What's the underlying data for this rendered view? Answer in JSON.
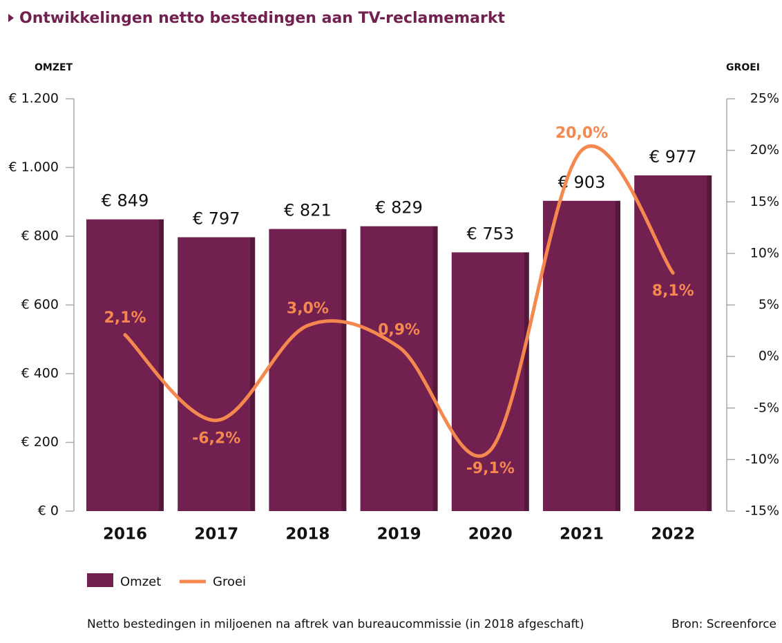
{
  "chart_data": {
    "type": "bar",
    "title": "Ontwikkelingen netto bestedingen aan TV-reclamemarkt",
    "y_label": "OMZET",
    "y2_label": "GROEI",
    "categories": [
      "2016",
      "2017",
      "2018",
      "2019",
      "2020",
      "2021",
      "2022"
    ],
    "series": [
      {
        "name": "Omzet",
        "type": "bar",
        "color": "#722050",
        "values": [
          849,
          797,
          821,
          829,
          753,
          903,
          977
        ],
        "value_labels": [
          "€ 849",
          "€ 797",
          "€ 821",
          "€ 829",
          "€ 753",
          "€ 903",
          "€ 977"
        ]
      },
      {
        "name": "Groei",
        "type": "line",
        "axis": "y2",
        "color": "#f5884f",
        "values": [
          2.1,
          -6.2,
          3.0,
          0.9,
          -9.1,
          20.0,
          8.1
        ],
        "value_labels": [
          "2,1%",
          "-6,2%",
          "3,0%",
          "0,9%",
          "-9,1%",
          "20,0%",
          "8,1%"
        ]
      }
    ],
    "ylim": [
      0,
      1200
    ],
    "yticks": [
      {
        "value": 0,
        "label": "€ 0"
      },
      {
        "value": 200,
        "label": "€ 200"
      },
      {
        "value": 400,
        "label": "€ 400"
      },
      {
        "value": 600,
        "label": "€ 600"
      },
      {
        "value": 800,
        "label": "€ 800"
      },
      {
        "value": 1000,
        "label": "€ 1.000"
      },
      {
        "value": 1200,
        "label": "€ 1.200"
      }
    ],
    "y2lim": [
      -15,
      25
    ],
    "y2ticks": [
      {
        "value": -15,
        "label": "-15%"
      },
      {
        "value": -10,
        "label": "-10%"
      },
      {
        "value": -5,
        "label": "-5%"
      },
      {
        "value": 0,
        "label": "0%"
      },
      {
        "value": 5,
        "label": "5%"
      },
      {
        "value": 10,
        "label": "10%"
      },
      {
        "value": 15,
        "label": "15%"
      },
      {
        "value": 20,
        "label": "20%"
      },
      {
        "value": 25,
        "label": "25%"
      }
    ],
    "note": "Netto bestedingen in miljoenen na aftrek van bureaucommissie (in 2018 afgeschaft)",
    "source": "Bron: Screenforce"
  }
}
